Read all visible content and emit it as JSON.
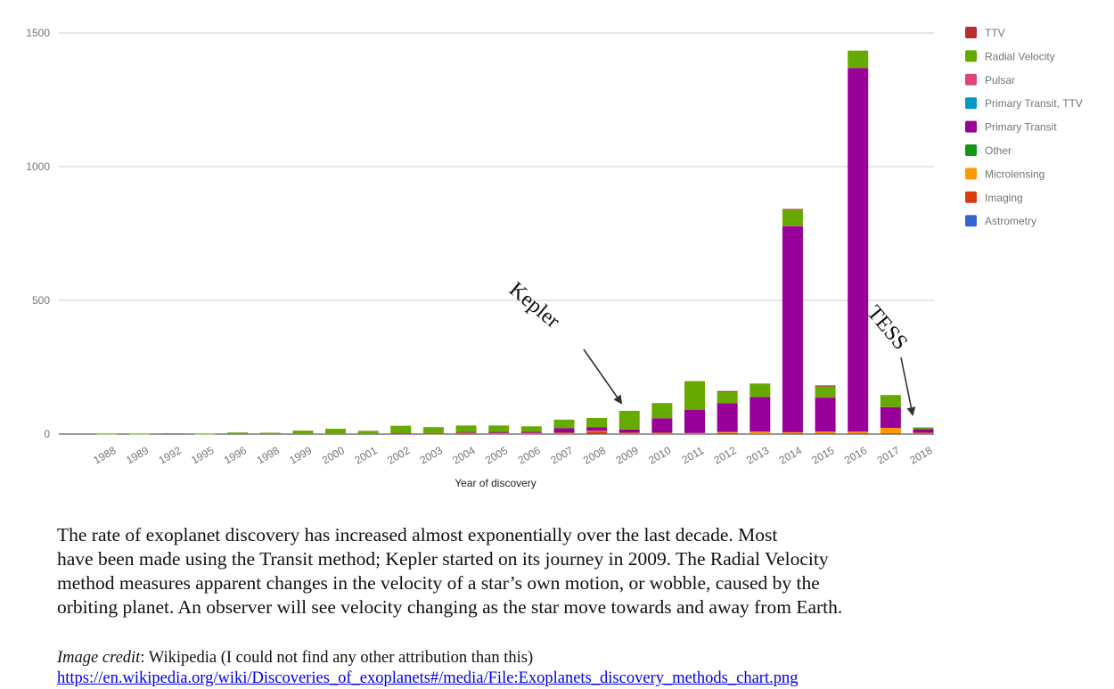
{
  "chart_data": {
    "type": "bar",
    "stacked": true,
    "xlabel": "Year of discovery",
    "ylabel": "",
    "ylim": [
      0,
      1500
    ],
    "yticks": [
      0,
      500,
      1000,
      1500
    ],
    "grid": true,
    "legend_position": "right",
    "categories": [
      "1988",
      "1989",
      "1992",
      "1995",
      "1996",
      "1998",
      "1999",
      "2000",
      "2001",
      "2002",
      "2003",
      "2004",
      "2005",
      "2006",
      "2007",
      "2008",
      "2009",
      "2010",
      "2011",
      "2012",
      "2013",
      "2014",
      "2015",
      "2016",
      "2017",
      "2018"
    ],
    "series": [
      {
        "name": "Astrometry",
        "color": "#3366cc",
        "values": [
          0,
          0,
          0,
          0,
          0,
          0,
          0,
          0,
          0,
          0,
          0,
          0,
          0,
          0,
          0,
          0,
          0,
          0,
          0,
          0,
          0,
          0,
          0,
          0,
          0,
          0
        ]
      },
      {
        "name": "Imaging",
        "color": "#dc3912",
        "values": [
          0,
          0,
          0,
          0,
          0,
          0,
          0,
          0,
          0,
          0,
          0,
          3,
          2,
          2,
          2,
          9,
          2,
          2,
          2,
          4,
          2,
          3,
          3,
          3,
          3,
          3
        ]
      },
      {
        "name": "Microlensing",
        "color": "#ff9900",
        "values": [
          0,
          0,
          0,
          0,
          0,
          0,
          0,
          0,
          0,
          0,
          2,
          2,
          2,
          2,
          3,
          3,
          3,
          3,
          2,
          4,
          7,
          4,
          6,
          6,
          20,
          2
        ]
      },
      {
        "name": "Other",
        "color": "#109618",
        "values": [
          0,
          0,
          0,
          0,
          0,
          0,
          0,
          0,
          0,
          0,
          0,
          0,
          0,
          0,
          0,
          0,
          0,
          0,
          0,
          0,
          0,
          0,
          0,
          0,
          0,
          0
        ]
      },
      {
        "name": "Primary Transit",
        "color": "#990099",
        "values": [
          0,
          0,
          0,
          0,
          0,
          0,
          0,
          0,
          0,
          1,
          2,
          3,
          4,
          5,
          17,
          13,
          12,
          54,
          86,
          108,
          130,
          770,
          128,
          1360,
          78,
          14
        ]
      },
      {
        "name": "Primary Transit, TTV",
        "color": "#0099c6",
        "values": [
          0,
          0,
          0,
          0,
          0,
          0,
          0,
          0,
          0,
          0,
          0,
          0,
          0,
          0,
          0,
          0,
          0,
          0,
          0,
          0,
          0,
          0,
          0,
          0,
          0,
          0
        ]
      },
      {
        "name": "Pulsar",
        "color": "#dd4477",
        "values": [
          0,
          0,
          3,
          0,
          0,
          0,
          0,
          0,
          0,
          0,
          0,
          0,
          0,
          0,
          0,
          0,
          0,
          0,
          0,
          0,
          0,
          2,
          1,
          0,
          0,
          0
        ]
      },
      {
        "name": "Radial Velocity",
        "color": "#66aa00",
        "values": [
          1,
          1,
          0,
          1,
          6,
          5,
          13,
          20,
          12,
          30,
          22,
          24,
          24,
          20,
          32,
          35,
          70,
          57,
          108,
          41,
          50,
          60,
          40,
          65,
          45,
          6
        ]
      },
      {
        "name": "TTV",
        "color": "#b82e2e",
        "values": [
          0,
          0,
          0,
          0,
          0,
          0,
          0,
          0,
          0,
          0,
          0,
          0,
          0,
          0,
          0,
          0,
          0,
          0,
          0,
          4,
          0,
          3,
          4,
          0,
          0,
          0
        ]
      }
    ],
    "legend_order": [
      "TTV",
      "Radial Velocity",
      "Pulsar",
      "Primary Transit, TTV",
      "Primary Transit",
      "Other",
      "Microlensing",
      "Imaging",
      "Astrometry"
    ],
    "annotations": [
      {
        "text": "Kepler",
        "category": "2009"
      },
      {
        "text": "TESS",
        "category": "2018"
      }
    ]
  },
  "caption": {
    "lines": [
      "The rate of exoplanet discovery has increased almost exponentially over the last decade. Most",
      "have been made using the Transit method; Kepler started on its journey in 2009. The Radial Velocity",
      "method measures apparent changes in the velocity of a star’s own motion, or wobble, caused by the",
      "orbiting planet. An observer will see velocity changing as the star move towards and away from Earth."
    ]
  },
  "credit": {
    "label": "Image credit",
    "separator": ": ",
    "text": "Wikipedia (I could not find any other attribution than this)",
    "link": "https://en.wikipedia.org/wiki/Discoveries_of_exoplanets#/media/File:Exoplanets_discovery_methods_chart.png"
  }
}
